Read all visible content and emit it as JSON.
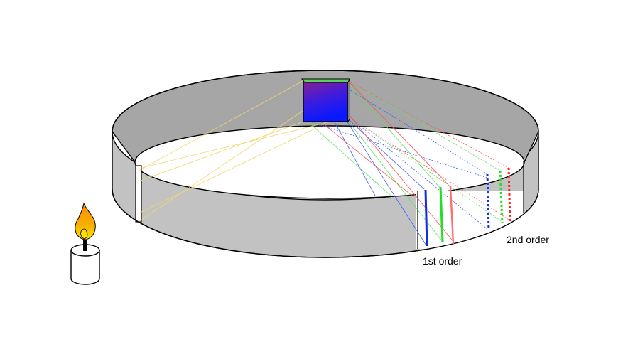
{
  "labels": {
    "first_order": "1st order",
    "second_order": "2nd order"
  },
  "colors": {
    "wall_outer": "#c2c2c2",
    "wall_inner": "#a6a6a6",
    "floor": "#ffffff",
    "outline": "#000000",
    "light_ray": "#f0d060",
    "red": "#ff2020",
    "green": "#20e020",
    "blue": "#1030ff",
    "grating_top": "#8020a0",
    "grating_bottom": "#1010ff",
    "flame_outer": "#f7a000",
    "flame_inner": "#ffd800"
  },
  "icons": {
    "light_source": "candle-icon",
    "diffraction_element": "grating-icon"
  }
}
